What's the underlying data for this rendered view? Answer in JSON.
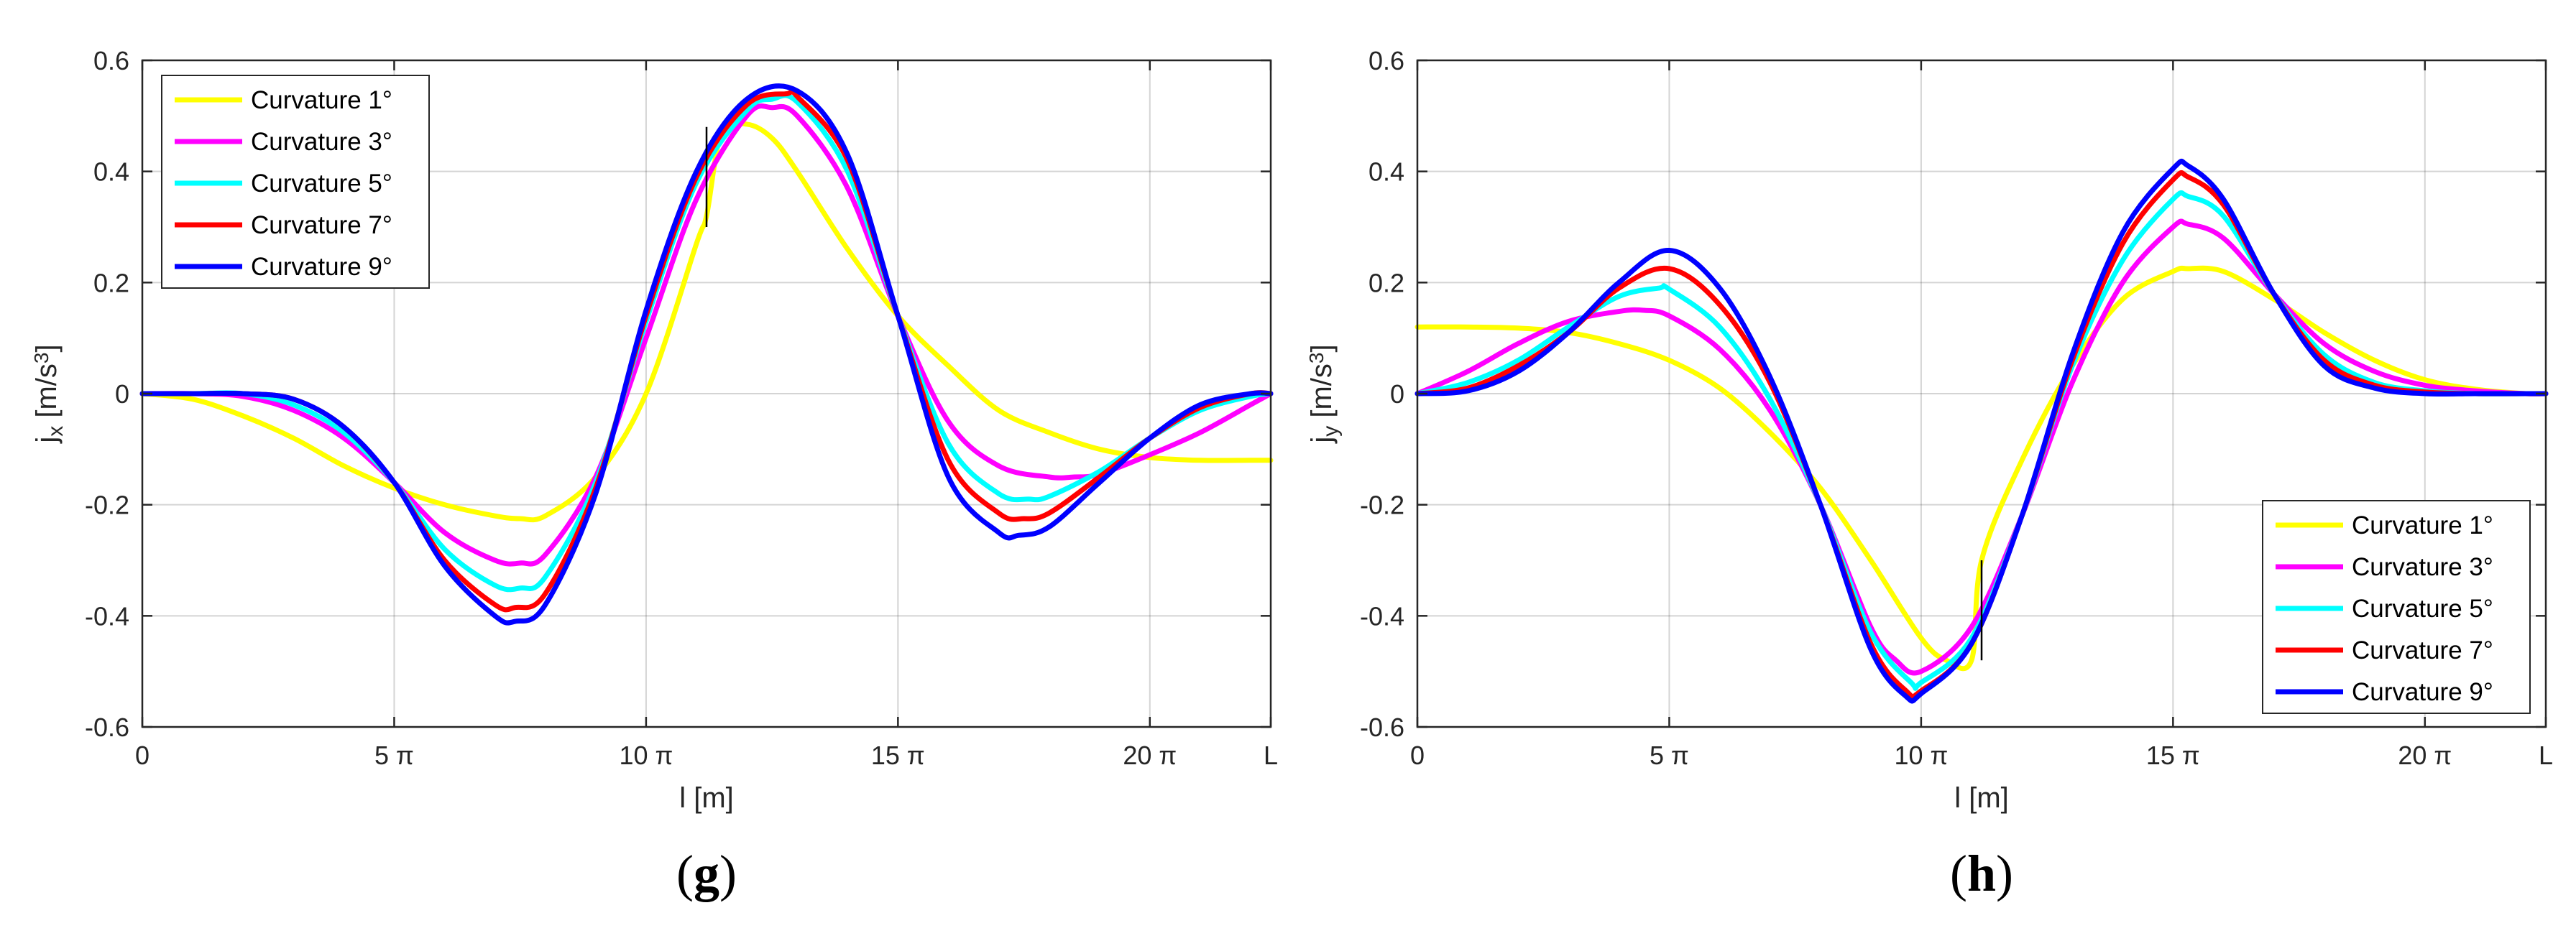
{
  "chart_data": [
    {
      "type": "line",
      "panel_label": "(g)",
      "panel_letter": "g",
      "xlabel": "l [m]",
      "ylabel": "j_x [m/s^3]",
      "ylabel_parts": {
        "main": "j",
        "sub": "x",
        "units": " [m/s",
        "sup": "3",
        "close": "]"
      },
      "x_unit": "π",
      "x_ticks": [
        0,
        5,
        10,
        15,
        20,
        22.4
      ],
      "x_tick_labels": [
        "0",
        "5 π",
        "10 π",
        "15 π",
        "20 π",
        "L"
      ],
      "xlim": [
        0,
        22.4
      ],
      "ylim": [
        -0.6,
        0.6
      ],
      "y_ticks": [
        -0.6,
        -0.4,
        -0.2,
        0,
        0.2,
        0.4,
        0.6
      ],
      "y_tick_labels": [
        "-0.6",
        "-0.4",
        "-0.2",
        "0",
        "0.2",
        "0.4",
        "0.6"
      ],
      "grid": true,
      "legend_position": "top-left",
      "annotation": {
        "type": "vertical-segment",
        "x": 11.2,
        "y_from": 0.3,
        "y_to": 0.48
      },
      "series": [
        {
          "name": "Curvature 1°",
          "color": "#ffff00",
          "x": [
            0,
            1,
            2,
            3,
            4,
            5,
            6,
            7,
            7.5,
            8,
            9,
            10,
            11,
            11.2,
            11.5,
            12,
            12.5,
            13,
            14,
            15,
            16,
            17,
            18,
            19,
            20,
            21,
            22,
            22.4
          ],
          "y": [
            0,
            -0.01,
            -0.04,
            -0.08,
            -0.13,
            -0.17,
            -0.2,
            -0.22,
            -0.225,
            -0.22,
            -0.15,
            0,
            0.27,
            0.32,
            0.47,
            0.485,
            0.46,
            0.4,
            0.26,
            0.14,
            0.05,
            -0.03,
            -0.07,
            -0.1,
            -0.115,
            -0.12,
            -0.12,
            -0.12
          ]
        },
        {
          "name": "Curvature 3°",
          "color": "#ff00ff",
          "x": [
            0,
            1,
            2,
            3,
            4,
            5,
            6,
            7,
            7.5,
            8,
            9,
            10,
            11,
            12,
            12.5,
            13,
            14,
            15,
            16,
            17,
            18,
            18.5,
            19,
            20,
            21,
            22,
            22.4
          ],
          "y": [
            0,
            0,
            -0.005,
            -0.03,
            -0.08,
            -0.16,
            -0.25,
            -0.3,
            -0.305,
            -0.29,
            -0.15,
            0.1,
            0.35,
            0.5,
            0.515,
            0.5,
            0.37,
            0.14,
            -0.05,
            -0.13,
            -0.15,
            -0.15,
            -0.145,
            -0.11,
            -0.07,
            -0.02,
            0
          ]
        },
        {
          "name": "Curvature 5°",
          "color": "#00ffff",
          "x": [
            0,
            1,
            2,
            3,
            4,
            5,
            6,
            7,
            7.5,
            8,
            9,
            10,
            11,
            12,
            12.5,
            13,
            14,
            15,
            16,
            17,
            17.6,
            18,
            19,
            20,
            21,
            22,
            22.4
          ],
          "y": [
            0,
            0,
            0,
            -0.02,
            -0.07,
            -0.16,
            -0.28,
            -0.345,
            -0.35,
            -0.33,
            -0.16,
            0.13,
            0.38,
            0.51,
            0.53,
            0.525,
            0.4,
            0.14,
            -0.09,
            -0.18,
            -0.19,
            -0.185,
            -0.14,
            -0.08,
            -0.03,
            -0.005,
            0
          ]
        },
        {
          "name": "Curvature 7°",
          "color": "#ff0000",
          "x": [
            0,
            1,
            2,
            3,
            4,
            5,
            6,
            7,
            7.4,
            8,
            9,
            10,
            11,
            12,
            12.8,
            13,
            14,
            15,
            16,
            17,
            17.5,
            18,
            19,
            20,
            21,
            22,
            22.4
          ],
          "y": [
            0,
            0,
            0,
            -0.01,
            -0.06,
            -0.16,
            -0.3,
            -0.38,
            -0.385,
            -0.36,
            -0.17,
            0.14,
            0.39,
            0.52,
            0.54,
            0.535,
            0.42,
            0.14,
            -0.12,
            -0.215,
            -0.225,
            -0.215,
            -0.15,
            -0.08,
            -0.025,
            0,
            0
          ]
        },
        {
          "name": "Curvature 9°",
          "color": "#0000ff",
          "x": [
            0,
            1,
            2,
            3,
            4,
            5,
            6,
            7,
            7.4,
            8,
            9,
            10,
            11,
            12,
            13,
            14,
            15,
            16,
            17,
            17.4,
            18,
            19,
            20,
            21,
            22,
            22.4
          ],
          "y": [
            0,
            0,
            0,
            -0.01,
            -0.06,
            -0.16,
            -0.31,
            -0.4,
            -0.41,
            -0.38,
            -0.18,
            0.15,
            0.4,
            0.53,
            0.545,
            0.43,
            0.14,
            -0.15,
            -0.25,
            -0.255,
            -0.24,
            -0.16,
            -0.08,
            -0.02,
            0,
            0
          ]
        }
      ]
    },
    {
      "type": "line",
      "panel_label": "(h)",
      "panel_letter": "h",
      "xlabel": "l [m]",
      "ylabel": "j_y [m/s^3]",
      "ylabel_parts": {
        "main": "j",
        "sub": "y",
        "units": " [m/s",
        "sup": "3",
        "close": "]"
      },
      "x_unit": "π",
      "x_ticks": [
        0,
        5,
        10,
        15,
        20,
        22.4
      ],
      "x_tick_labels": [
        "0",
        "5 π",
        "10 π",
        "15 π",
        "20 π",
        "L"
      ],
      "xlim": [
        0,
        22.4
      ],
      "ylim": [
        -0.6,
        0.6
      ],
      "y_ticks": [
        -0.6,
        -0.4,
        -0.2,
        0,
        0.2,
        0.4,
        0.6
      ],
      "y_tick_labels": [
        "-0.6",
        "-0.4",
        "-0.2",
        "0",
        "0.2",
        "0.4",
        "0.6"
      ],
      "grid": true,
      "legend_position": "bottom-right",
      "annotation": {
        "type": "vertical-segment",
        "x": 11.2,
        "y_from": -0.48,
        "y_to": -0.3
      },
      "series": [
        {
          "name": "Curvature 1°",
          "color": "#ffff00",
          "x": [
            0,
            1,
            2,
            3,
            4,
            5,
            6,
            7,
            8,
            9,
            10,
            10.5,
            11,
            11.2,
            12,
            13,
            14,
            15,
            15.3,
            16,
            17,
            18,
            19,
            20,
            21,
            22,
            22.4
          ],
          "y": [
            0.12,
            0.12,
            0.118,
            0.11,
            0.09,
            0.06,
            0.01,
            -0.07,
            -0.17,
            -0.3,
            -0.44,
            -0.48,
            -0.48,
            -0.3,
            -0.12,
            0.05,
            0.17,
            0.22,
            0.225,
            0.22,
            0.17,
            0.11,
            0.06,
            0.025,
            0.008,
            0,
            0
          ]
        },
        {
          "name": "Curvature 3°",
          "color": "#ff00ff",
          "x": [
            0,
            1,
            2,
            3,
            4,
            4.5,
            5,
            6,
            7,
            8,
            9,
            9.5,
            10,
            11,
            12,
            13,
            14,
            15,
            15.3,
            16,
            17,
            18,
            19,
            20,
            21,
            22,
            22.4
          ],
          "y": [
            0,
            0.04,
            0.09,
            0.13,
            0.148,
            0.15,
            0.14,
            0.08,
            -0.03,
            -0.2,
            -0.42,
            -0.48,
            -0.5,
            -0.42,
            -0.22,
            0.02,
            0.2,
            0.3,
            0.305,
            0.28,
            0.18,
            0.09,
            0.04,
            0.015,
            0.005,
            0,
            0
          ]
        },
        {
          "name": "Curvature 5°",
          "color": "#00ffff",
          "x": [
            0,
            1,
            2,
            3,
            4,
            4.8,
            5,
            6,
            7,
            8,
            9,
            9.8,
            10,
            11,
            12,
            13,
            14,
            15,
            15.3,
            16,
            17,
            18,
            19,
            20,
            21,
            22,
            22.4
          ],
          "y": [
            0,
            0.02,
            0.06,
            0.12,
            0.175,
            0.19,
            0.188,
            0.12,
            -0.01,
            -0.2,
            -0.43,
            -0.52,
            -0.52,
            -0.44,
            -0.22,
            0.05,
            0.24,
            0.35,
            0.355,
            0.32,
            0.18,
            0.07,
            0.02,
            0.005,
            0,
            0,
            0
          ]
        },
        {
          "name": "Curvature 7°",
          "color": "#ff0000",
          "x": [
            0,
            1,
            2,
            3,
            4,
            5,
            6,
            7,
            8,
            9,
            9.7,
            10,
            11,
            12,
            13,
            14,
            15,
            15.3,
            16,
            17,
            18,
            19,
            20,
            21,
            22,
            22.4
          ],
          "y": [
            0,
            0.01,
            0.05,
            0.11,
            0.19,
            0.225,
            0.16,
            0.02,
            -0.2,
            -0.45,
            -0.535,
            -0.535,
            -0.45,
            -0.22,
            0.06,
            0.27,
            0.385,
            0.39,
            0.34,
            0.18,
            0.06,
            0.015,
            0.003,
            0,
            0,
            0
          ]
        },
        {
          "name": "Curvature 9°",
          "color": "#0000ff",
          "x": [
            0,
            1,
            2,
            3,
            4,
            5,
            6,
            7,
            8,
            9,
            9.7,
            10,
            11,
            12,
            13,
            14,
            15,
            15.3,
            16,
            17,
            18,
            19,
            20,
            21,
            22,
            22.4
          ],
          "y": [
            0,
            0.005,
            0.04,
            0.11,
            0.2,
            0.258,
            0.19,
            0.03,
            -0.2,
            -0.46,
            -0.545,
            -0.54,
            -0.45,
            -0.22,
            0.07,
            0.29,
            0.405,
            0.41,
            0.35,
            0.18,
            0.05,
            0.01,
            0,
            0,
            0,
            0
          ]
        }
      ]
    }
  ]
}
